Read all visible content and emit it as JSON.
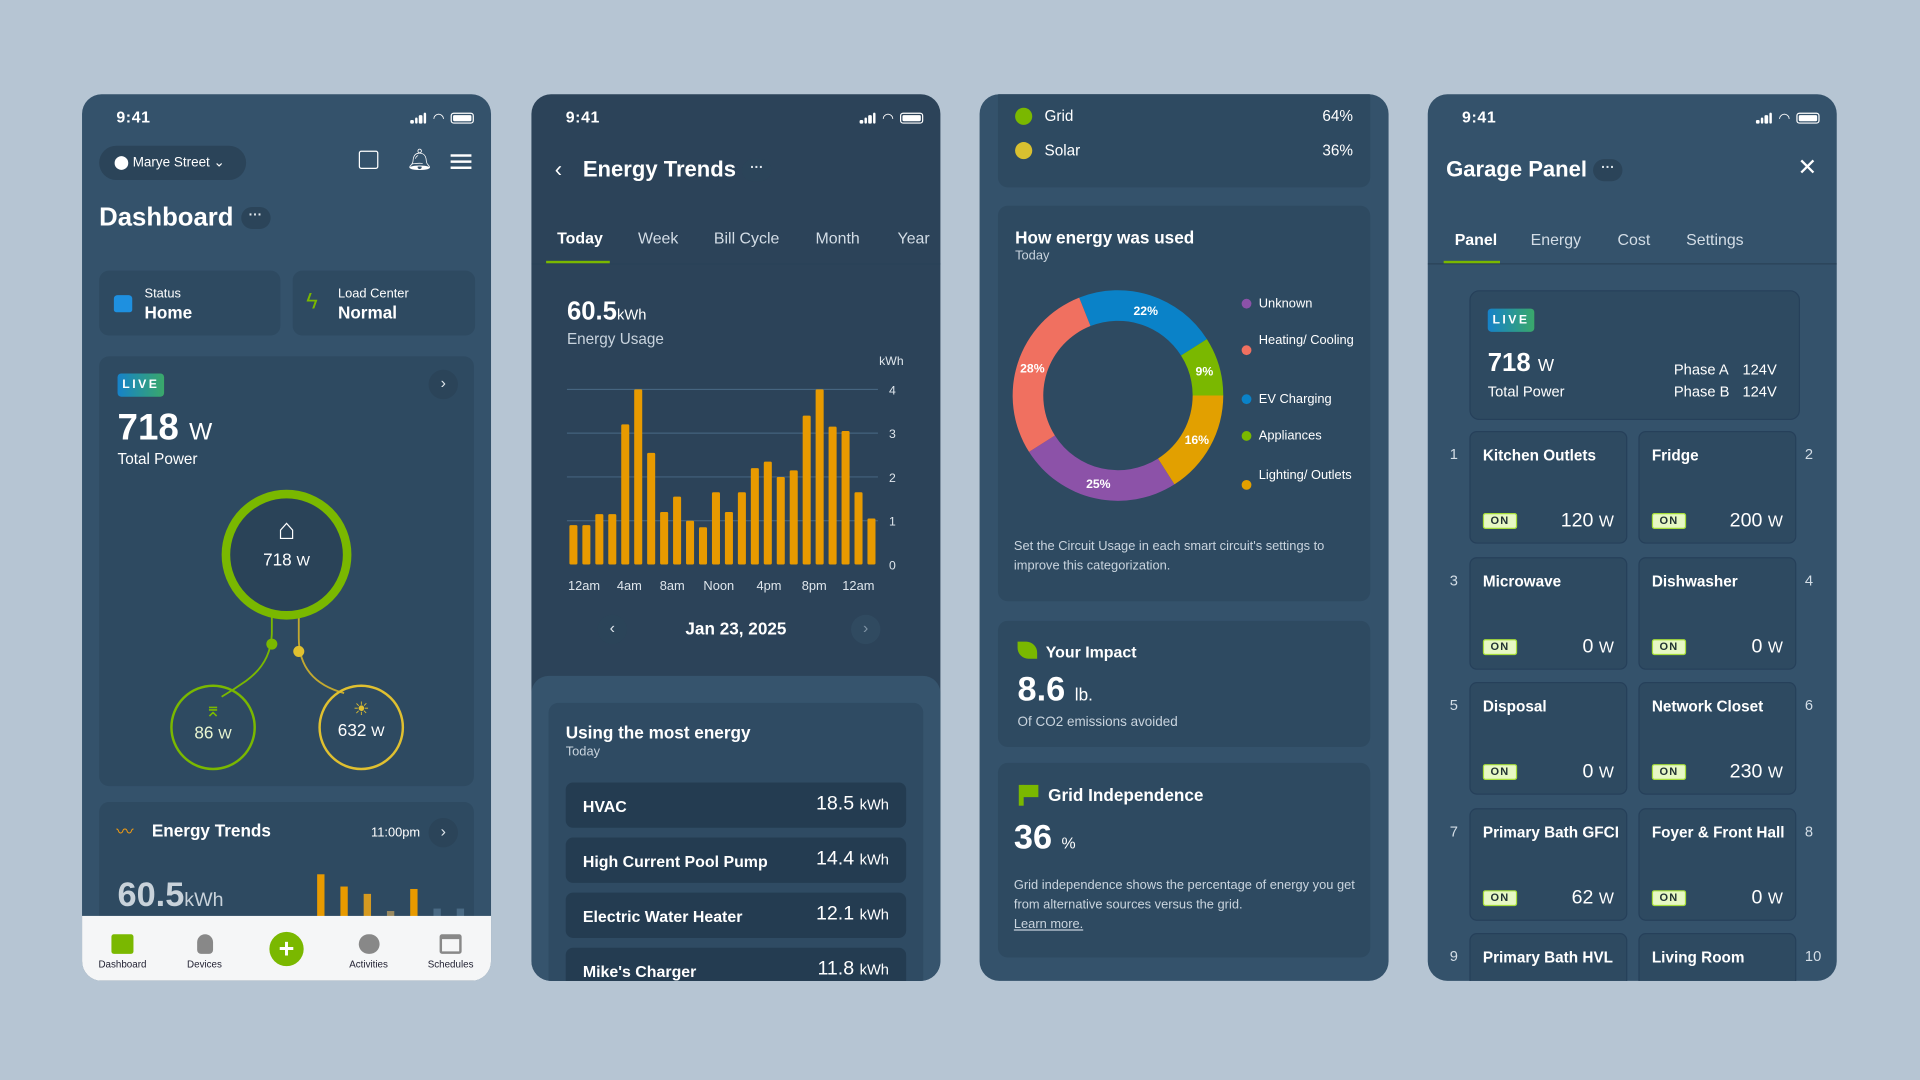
{
  "status_time": "9:41",
  "colors": {
    "background": "#b6c5d3",
    "phone": "#34526b",
    "card": "#2e4a61",
    "accent_green": "#7ab800",
    "solar_yellow": "#e0c030",
    "bar_orange": "#e89a00"
  },
  "dashboard": {
    "location": "Marye Street",
    "title": "Dashboard",
    "more": "···",
    "status": {
      "label": "Status",
      "value": "Home"
    },
    "load_center": {
      "label": "Load Center",
      "value": "Normal"
    },
    "live": {
      "badge": "LIVE",
      "power": "718",
      "unit": "W",
      "label": "Total Power",
      "home_power": "718",
      "grid_power": "86",
      "solar_power": "632"
    },
    "trends": {
      "title": "Energy Trends",
      "time": "11:00pm",
      "value": "60.5",
      "unit": "kWh"
    },
    "nav": [
      {
        "label": "Dashboard",
        "icon": "dashboard-icon"
      },
      {
        "label": "Devices",
        "icon": "lightbulb-icon"
      },
      {
        "label": "",
        "icon": "plus-icon"
      },
      {
        "label": "Activities",
        "icon": "play-icon"
      },
      {
        "label": "Schedules",
        "icon": "calendar-icon"
      }
    ]
  },
  "trends": {
    "title": "Energy Trends",
    "more": "···",
    "tabs": [
      "Today",
      "Week",
      "Bill Cycle",
      "Month",
      "Year"
    ],
    "active_tab": 0,
    "total": "60.5",
    "unit": "kWh",
    "total_label": "Energy Usage",
    "date": "Jan 23, 2025",
    "most": {
      "title": "Using the most energy",
      "subtitle": "Today",
      "rows": [
        {
          "name": "HVAC",
          "value": "18.5",
          "unit": "kWh"
        },
        {
          "name": "High Current Pool Pump",
          "value": "14.4",
          "unit": "kWh"
        },
        {
          "name": "Electric Water Heater",
          "value": "12.1",
          "unit": "kWh"
        },
        {
          "name": "Mike's Charger",
          "value": "11.8",
          "unit": "kWh"
        }
      ]
    }
  },
  "chart_data": [
    {
      "type": "bar",
      "ylabel": "kWh",
      "ylim": [
        0,
        4
      ],
      "yticks": [
        "0",
        "1",
        "2",
        "3",
        "4"
      ],
      "xticks": [
        "12am",
        "4am",
        "8am",
        "Noon",
        "4pm",
        "8pm",
        "12am"
      ],
      "values": [
        0.9,
        0.9,
        1.15,
        1.15,
        3.2,
        4.0,
        2.55,
        1.2,
        1.55,
        1.0,
        0.85,
        1.65,
        1.2,
        1.65,
        2.2,
        2.35,
        2.0,
        2.15,
        3.4,
        4.0,
        3.15,
        3.05,
        1.65,
        1.05
      ],
      "color": "#e89a00",
      "grid": true
    },
    {
      "type": "pie",
      "title": "How energy was used",
      "subtitle": "Today",
      "donut": true,
      "slices": [
        {
          "name": "EV Charging",
          "value": 22,
          "label": "22%",
          "color": "#0a82c8"
        },
        {
          "name": "Appliances",
          "value": 9,
          "label": "9%",
          "color": "#7ab800"
        },
        {
          "name": "Lighting/ Outlets",
          "value": 16,
          "label": "16%",
          "color": "#e2a000"
        },
        {
          "name": "Unknown",
          "value": 25,
          "label": "25%",
          "color": "#8c52a8"
        },
        {
          "name": "Heating/ Cooling",
          "value": 28,
          "label": "28%",
          "color": "#f07060"
        }
      ],
      "legend_order": [
        "Unknown",
        "Heating/ Cooling",
        "EV Charging",
        "Appliances",
        "Lighting/ Outlets"
      ],
      "legend_colors": [
        "#8c52a8",
        "#f07060",
        "#0a82c8",
        "#7ab800",
        "#e2a000"
      ]
    }
  ],
  "sources": {
    "grid": {
      "label": "Grid",
      "value": "64%"
    },
    "solar": {
      "label": "Solar",
      "value": "36%"
    }
  },
  "usage_note": "Set the Circuit Usage in each smart circuit's settings to improve this categorization.",
  "impact": {
    "title": "Your Impact",
    "value": "8.6",
    "unit": "lb.",
    "label": "Of CO2 emissions avoided"
  },
  "independence": {
    "title": "Grid Independence",
    "value": "36",
    "unit": "%",
    "text": "Grid independence shows the percentage of energy you get from alternative sources versus the grid.",
    "link": "Learn more."
  },
  "panel": {
    "title": "Garage Panel",
    "more": "···",
    "tabs": [
      "Panel",
      "Energy",
      "Cost",
      "Settings"
    ],
    "active_tab": 0,
    "live": {
      "badge": "LIVE",
      "power": "718",
      "unit": "W",
      "label": "Total Power",
      "phase_a_label": "Phase A",
      "phase_a": "124V",
      "phase_b_label": "Phase B",
      "phase_b": "124V"
    },
    "circuits": [
      {
        "num": "1",
        "name": "Kitchen Outlets",
        "state": "ON",
        "power": "120"
      },
      {
        "num": "2",
        "name": "Fridge",
        "state": "ON",
        "power": "200"
      },
      {
        "num": "3",
        "name": "Microwave",
        "state": "ON",
        "power": "0"
      },
      {
        "num": "4",
        "name": "Dishwasher",
        "state": "ON",
        "power": "0"
      },
      {
        "num": "5",
        "name": "Disposal",
        "state": "ON",
        "power": "0"
      },
      {
        "num": "6",
        "name": "Network Closet",
        "state": "ON",
        "power": "230"
      },
      {
        "num": "7",
        "name": "Primary Bath GFCI",
        "state": "ON",
        "power": "62"
      },
      {
        "num": "8",
        "name": "Foyer & Front Hall",
        "state": "ON",
        "power": "0"
      },
      {
        "num": "9",
        "name": "Primary Bath HVL",
        "state": "",
        "power": ""
      },
      {
        "num": "10",
        "name": "Living Room",
        "state": "",
        "power": ""
      }
    ],
    "unit": "W"
  }
}
